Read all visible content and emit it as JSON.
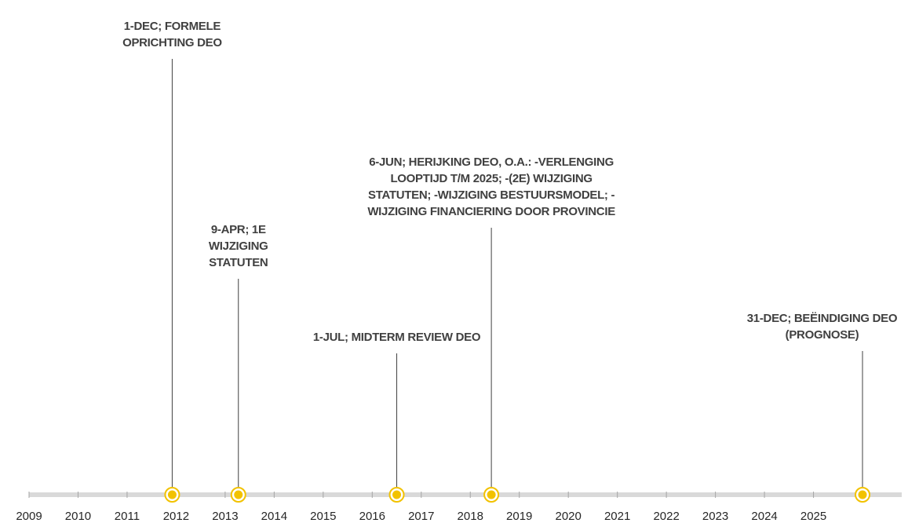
{
  "chart_data": {
    "type": "timeline",
    "xlim": [
      2009,
      2026.8
    ],
    "xticks": [
      2009,
      2010,
      2011,
      2012,
      2013,
      2014,
      2015,
      2016,
      2017,
      2018,
      2019,
      2020,
      2021,
      2022,
      2023,
      2024,
      2025
    ],
    "color": "#f2c200",
    "events": [
      {
        "x": 2011.92,
        "label": "1-DEC; FORMELE OPRICHTING DEO"
      },
      {
        "x": 2013.27,
        "label": "9-APR; 1E WIJZIGING STATUTEN"
      },
      {
        "x": 2016.5,
        "label": "1-JUL; MIDTERM REVIEW DEO"
      },
      {
        "x": 2018.43,
        "label": "6-JUN; HERIJKING DEO, O.A.: -VERLENGING LOOPTIJD T/M 2025; -(2E) WIJZIGING STATUTEN; -WIJZIGING BESTUURSMODEL; -WIJZIGING FINANCIERING DOOR PROVINCIE"
      },
      {
        "x": 2026.0,
        "label": "31-DEC; BEËINDIGING DEO (PROGNOSE)"
      }
    ]
  }
}
